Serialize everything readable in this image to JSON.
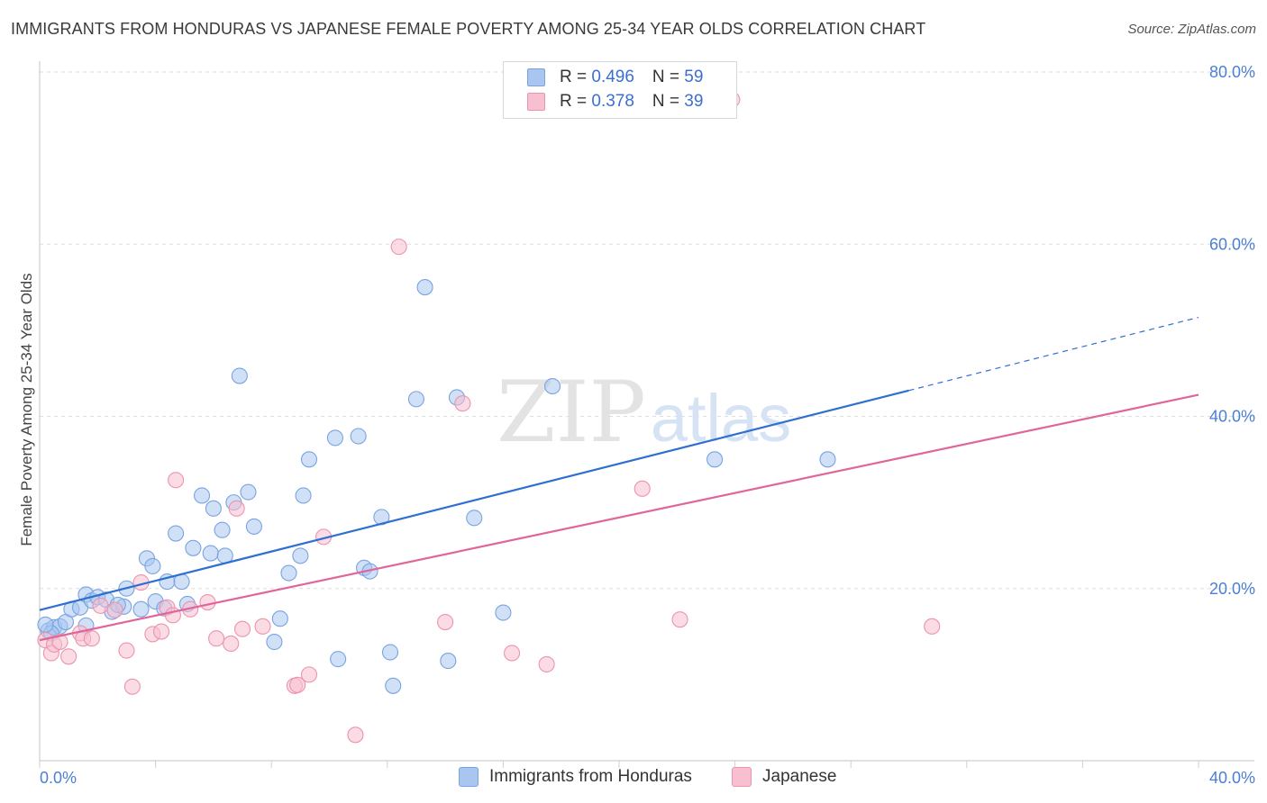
{
  "title": "IMMIGRANTS FROM HONDURAS VS JAPANESE FEMALE POVERTY AMONG 25-34 YEAR OLDS CORRELATION CHART",
  "source": "Source: ZipAtlas.com",
  "watermark": {
    "zip": "ZIP",
    "atlas": "atlas"
  },
  "legend": {
    "rows": [
      {
        "r_label": "R = ",
        "r_value": "0.496",
        "n_label": "N = ",
        "n_value": "59"
      },
      {
        "r_label": "R = ",
        "r_value": "0.378",
        "n_label": "N = ",
        "n_value": "39"
      }
    ]
  },
  "chart_data": {
    "type": "scatter",
    "title": "IMMIGRANTS FROM HONDURAS VS JAPANESE FEMALE POVERTY AMONG 25-34 YEAR OLDS CORRELATION CHART",
    "xlabel": "",
    "ylabel": "Female Poverty Among 25-34 Year Olds",
    "xlim": [
      0,
      40
    ],
    "ylim": [
      0,
      80
    ],
    "x_tick_labels": [
      {
        "value": 0,
        "label": "0.0%"
      },
      {
        "value": 40,
        "label": "40.0%"
      }
    ],
    "y_tick_labels": [
      {
        "value": 20,
        "label": "20.0%"
      },
      {
        "value": 40,
        "label": "40.0%"
      },
      {
        "value": 60,
        "label": "60.0%"
      },
      {
        "value": 80,
        "label": "80.0%"
      }
    ],
    "grid": true,
    "legend_position": "bottom",
    "series": [
      {
        "name": "Immigrants from Honduras",
        "color": "#a8c6f0",
        "stroke": "#7aa3e0",
        "line_color": "#2e6fd0",
        "r": 0.496,
        "n": 59,
        "trend": {
          "x0": 0,
          "y0": 17.5,
          "x1": 30,
          "y1": 43.0,
          "dash_x1": 40,
          "dash_y1": 51.5
        },
        "points": [
          [
            0.3,
            15.1
          ],
          [
            0.5,
            15.5
          ],
          [
            0.7,
            15.6
          ],
          [
            0.9,
            16.1
          ],
          [
            1.1,
            17.6
          ],
          [
            1.4,
            17.8
          ],
          [
            1.6,
            19.3
          ],
          [
            1.8,
            18.6
          ],
          [
            2.0,
            19.0
          ],
          [
            2.3,
            18.7
          ],
          [
            2.5,
            17.3
          ],
          [
            2.9,
            17.9
          ],
          [
            3.0,
            20.0
          ],
          [
            3.5,
            17.6
          ],
          [
            3.7,
            23.5
          ],
          [
            3.9,
            22.6
          ],
          [
            4.0,
            18.5
          ],
          [
            4.4,
            20.8
          ],
          [
            4.7,
            26.4
          ],
          [
            4.9,
            20.8
          ],
          [
            5.1,
            18.2
          ],
          [
            5.3,
            24.7
          ],
          [
            5.6,
            30.8
          ],
          [
            5.9,
            24.1
          ],
          [
            6.0,
            29.3
          ],
          [
            6.3,
            26.8
          ],
          [
            6.4,
            23.8
          ],
          [
            6.7,
            30.0
          ],
          [
            6.9,
            44.7
          ],
          [
            7.2,
            31.2
          ],
          [
            7.4,
            27.2
          ],
          [
            8.1,
            13.8
          ],
          [
            8.3,
            16.5
          ],
          [
            8.6,
            21.8
          ],
          [
            9.0,
            23.8
          ],
          [
            9.1,
            30.8
          ],
          [
            9.3,
            35.0
          ],
          [
            10.2,
            37.5
          ],
          [
            10.3,
            11.8
          ],
          [
            11.0,
            37.7
          ],
          [
            11.2,
            22.4
          ],
          [
            11.4,
            22.0
          ],
          [
            11.8,
            28.3
          ],
          [
            12.1,
            12.6
          ],
          [
            12.2,
            8.7
          ],
          [
            13.0,
            42.0
          ],
          [
            13.3,
            55.0
          ],
          [
            14.1,
            11.6
          ],
          [
            14.4,
            42.2
          ],
          [
            15.0,
            28.2
          ],
          [
            16.0,
            17.2
          ],
          [
            17.7,
            43.5
          ],
          [
            23.3,
            35.0
          ],
          [
            27.2,
            35.0
          ],
          [
            1.6,
            15.7
          ],
          [
            0.4,
            14.8
          ],
          [
            2.7,
            18.1
          ],
          [
            4.3,
            17.7
          ],
          [
            0.2,
            15.8
          ]
        ]
      },
      {
        "name": "Japanese",
        "color": "#f7bfd0",
        "stroke": "#ec93ad",
        "line_color": "#e0669a",
        "r": 0.378,
        "n": 39,
        "trend": {
          "x0": 0,
          "y0": 14.0,
          "x1": 40,
          "y1": 42.5
        },
        "points": [
          [
            0.2,
            14.0
          ],
          [
            0.4,
            12.5
          ],
          [
            0.5,
            13.5
          ],
          [
            0.7,
            13.8
          ],
          [
            1.0,
            12.1
          ],
          [
            1.4,
            14.8
          ],
          [
            1.5,
            14.2
          ],
          [
            1.8,
            14.2
          ],
          [
            2.1,
            18.0
          ],
          [
            2.6,
            17.5
          ],
          [
            3.0,
            12.8
          ],
          [
            3.2,
            8.6
          ],
          [
            3.5,
            20.7
          ],
          [
            3.9,
            14.7
          ],
          [
            4.2,
            15.0
          ],
          [
            4.4,
            17.8
          ],
          [
            4.6,
            16.9
          ],
          [
            4.7,
            32.6
          ],
          [
            5.2,
            17.6
          ],
          [
            5.8,
            18.4
          ],
          [
            6.1,
            14.2
          ],
          [
            6.6,
            13.6
          ],
          [
            6.8,
            29.3
          ],
          [
            7.0,
            15.3
          ],
          [
            7.7,
            15.6
          ],
          [
            8.8,
            8.7
          ],
          [
            8.9,
            8.8
          ],
          [
            9.3,
            10.0
          ],
          [
            9.8,
            26.0
          ],
          [
            10.9,
            3.0
          ],
          [
            12.4,
            59.7
          ],
          [
            14.0,
            16.1
          ],
          [
            14.6,
            41.5
          ],
          [
            16.3,
            12.5
          ],
          [
            17.5,
            11.2
          ],
          [
            20.8,
            31.6
          ],
          [
            22.1,
            16.4
          ],
          [
            30.8,
            15.6
          ],
          [
            23.9,
            76.8
          ]
        ]
      }
    ]
  }
}
